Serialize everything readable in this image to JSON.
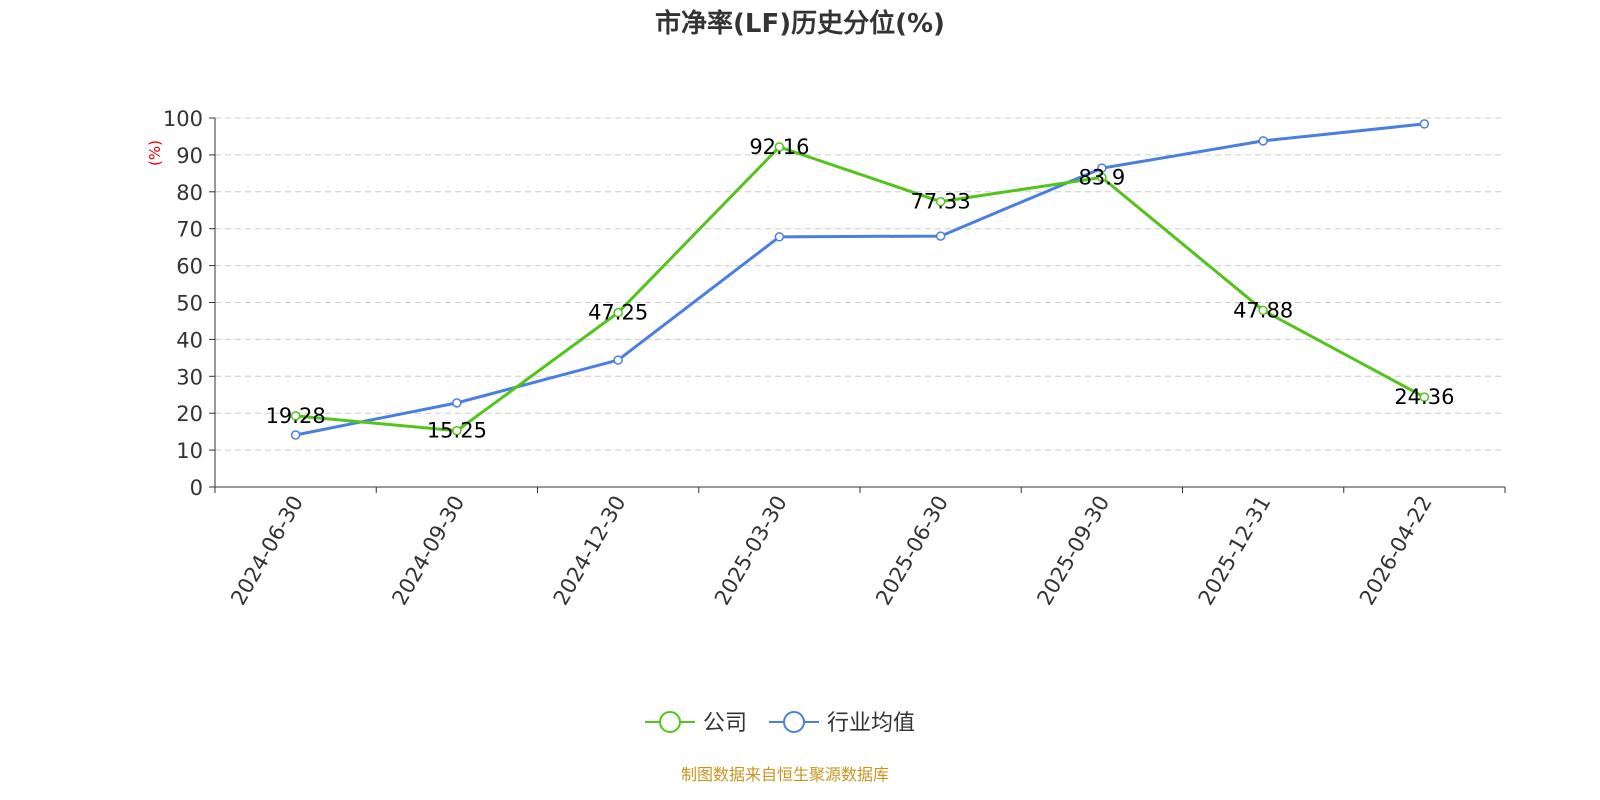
{
  "chart_data": {
    "type": "line",
    "title": "市净率(LF)历史分位(%)",
    "ylabel": "(%)",
    "ylim": [
      0,
      100
    ],
    "yticks": [
      0,
      10,
      20,
      30,
      40,
      50,
      60,
      70,
      80,
      90,
      100
    ],
    "grid": true,
    "legend_position": "bottom",
    "categories": [
      "2024-06-30",
      "2024-09-30",
      "2024-12-30",
      "2025-03-30",
      "2025-06-30",
      "2025-09-30",
      "2025-12-31",
      "2026-04-22"
    ],
    "series": [
      {
        "name": "公司",
        "color": "#52c41a",
        "values": [
          19.28,
          15.25,
          47.25,
          92.16,
          77.33,
          83.9,
          47.88,
          24.36
        ],
        "labels": [
          "19.28",
          "15.25",
          "47.25",
          "92.16",
          "77.33",
          "83.9",
          "47.88",
          "24.36"
        ]
      },
      {
        "name": "行业均值",
        "color": "#4a7fe0",
        "values": [
          14.1,
          22.8,
          34.4,
          67.8,
          68.0,
          86.4,
          93.8,
          98.4
        ]
      }
    ]
  },
  "source": "制图数据来自恒生聚源数据库"
}
